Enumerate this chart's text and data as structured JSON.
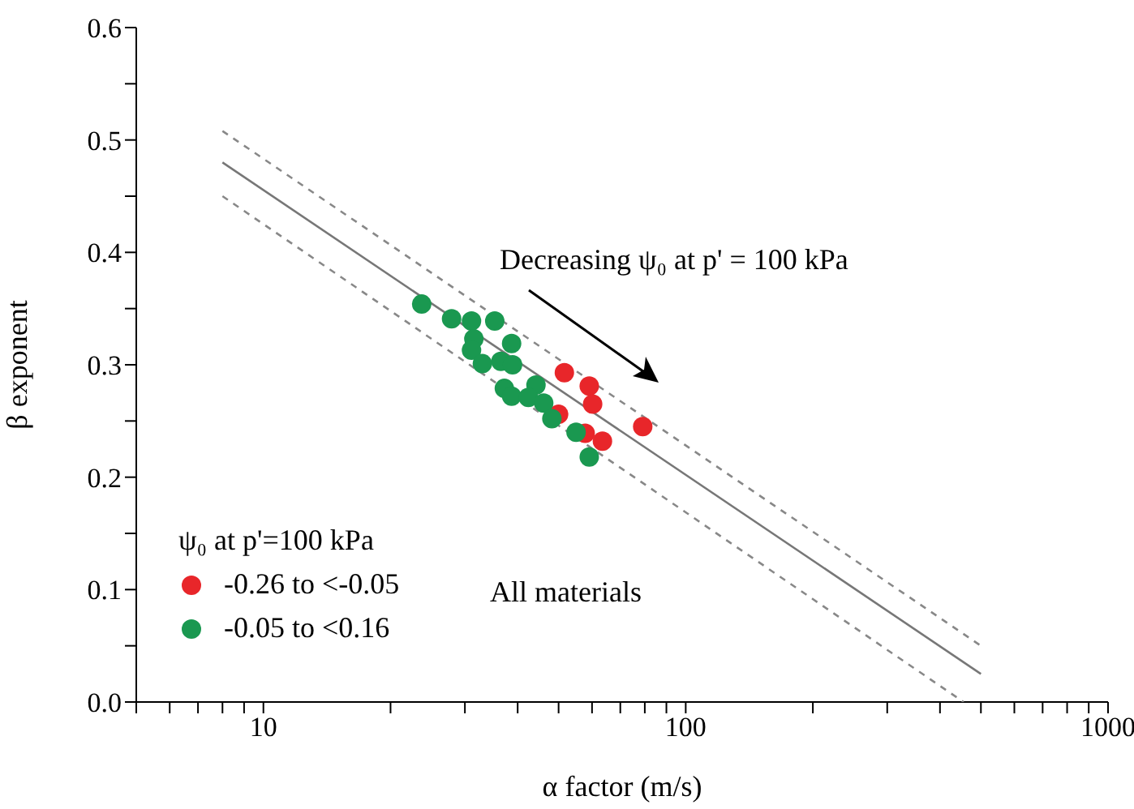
{
  "chart_data": {
    "type": "scatter",
    "xlabel": "α factor (m/s)",
    "ylabel": "β exponent",
    "legend_title": "ψ₀ at p'=100 kPa",
    "annotations": [
      "Decreasing ψ₀ at p' = 100 kPa",
      "All materials"
    ],
    "log": "x",
    "xlim": [
      5,
      1000
    ],
    "ylim": [
      0,
      0.6
    ],
    "xticks": [
      {
        "value": 5,
        "label": null
      },
      {
        "value": 6,
        "label": null
      },
      {
        "value": 7,
        "label": null
      },
      {
        "value": 8,
        "label": null
      },
      {
        "value": 9,
        "label": null
      },
      10,
      {
        "value": 20,
        "label": null
      },
      {
        "value": 30,
        "label": null
      },
      {
        "value": 40,
        "label": null
      },
      {
        "value": 50,
        "label": null
      },
      {
        "value": 60,
        "label": null
      },
      {
        "value": 70,
        "label": null
      },
      {
        "value": 80,
        "label": null
      },
      {
        "value": 90,
        "label": null
      },
      100,
      {
        "value": 200,
        "label": null
      },
      {
        "value": 300,
        "label": null
      },
      {
        "value": 400,
        "label": null
      },
      {
        "value": 500,
        "label": null
      },
      {
        "value": 600,
        "label": null
      },
      {
        "value": 700,
        "label": null
      },
      {
        "value": 800,
        "label": null
      },
      {
        "value": 900,
        "label": null
      },
      1000
    ],
    "yticks": [
      {
        "value": 0,
        "label": "0.0"
      },
      {
        "value": 0.05,
        "label": null
      },
      0.1,
      {
        "value": 0.15,
        "label": null
      },
      0.2,
      {
        "value": 0.25,
        "label": null
      },
      0.3,
      {
        "value": 0.35,
        "label": null
      },
      0.4,
      {
        "value": 0.45,
        "label": null
      },
      0.5,
      {
        "value": 0.55,
        "label": null
      },
      0.6
    ],
    "grid": false,
    "legend": "bottom left",
    "marker": "circle",
    "series": [
      {
        "type": "line",
        "color": "#777777",
        "line_style": "solid",
        "marker": "none",
        "x": [
          8,
          500
        ],
        "values": [
          0.48,
          0.025
        ]
      },
      {
        "type": "line",
        "color": "#888888",
        "line_style": "dashed",
        "marker": "none",
        "x": [
          8,
          500
        ],
        "values": [
          0.508,
          0.05
        ]
      },
      {
        "type": "line",
        "color": "#888888",
        "line_style": "dashed",
        "marker": "none",
        "x": [
          8,
          455
        ],
        "values": [
          0.45,
          0.0
        ]
      },
      {
        "name": "-0.26 to <-0.05",
        "color": "#e8262a",
        "x": [
          51.6,
          59.1,
          60.2,
          50.0,
          57.8,
          63.5,
          79.1
        ],
        "values": [
          0.293,
          0.281,
          0.265,
          0.256,
          0.239,
          0.232,
          0.245
        ]
      },
      {
        "name": "-0.05 to <0.16",
        "color": "#1a9850",
        "x": [
          23.7,
          27.9,
          31.1,
          35.3,
          31.5,
          31.1,
          38.7,
          33.0,
          36.5,
          38.9,
          37.2,
          38.7,
          44.2,
          42.4,
          44.6,
          46.1,
          48.2,
          55.0,
          59.1
        ],
        "values": [
          0.354,
          0.341,
          0.339,
          0.339,
          0.323,
          0.313,
          0.319,
          0.301,
          0.303,
          0.3,
          0.279,
          0.272,
          0.282,
          0.271,
          null,
          0.266,
          0.252,
          0.24,
          0.218
        ]
      }
    ]
  }
}
